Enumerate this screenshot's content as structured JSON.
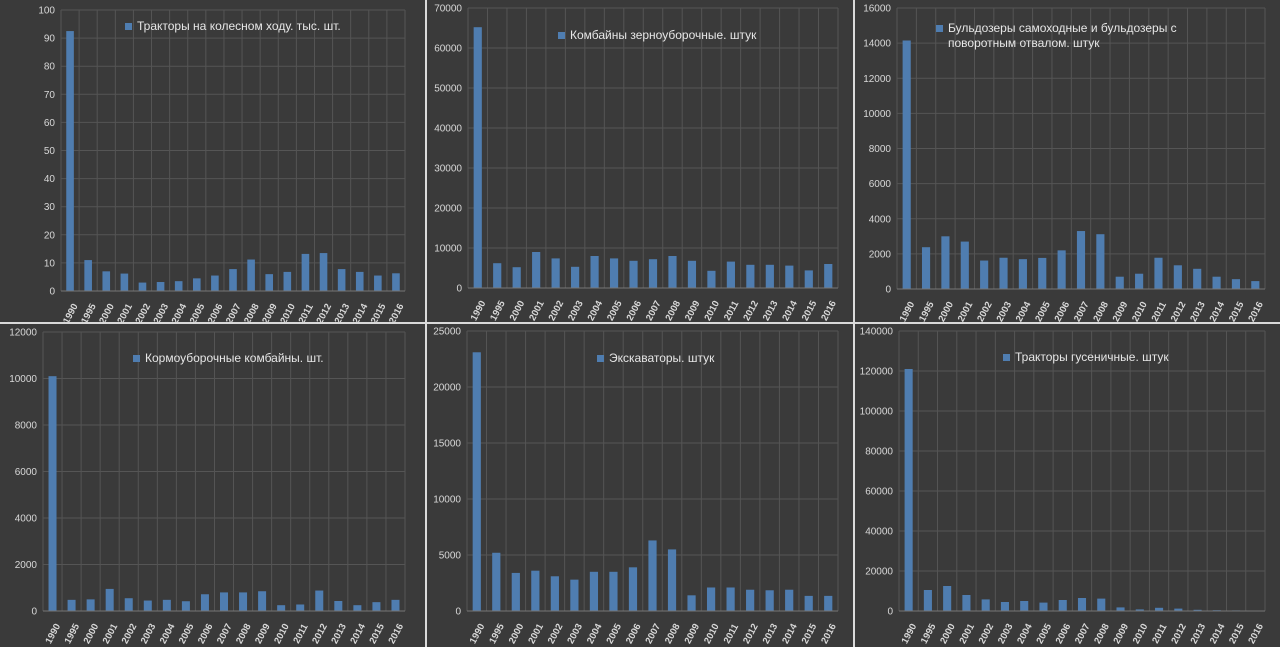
{
  "colors": {
    "background": "#3a3a3a",
    "bar": "#4f7db0",
    "grid": "#555555",
    "text": "#d8d8d8"
  },
  "categories": [
    "1990",
    "1995",
    "2000",
    "2001",
    "2002",
    "2003",
    "2004",
    "2005",
    "2006",
    "2007",
    "2008",
    "2009",
    "2010",
    "2011",
    "2012",
    "2013",
    "2014",
    "2015",
    "2016"
  ],
  "chart_data": [
    {
      "type": "bar",
      "series": [
        {
          "name": "Тракторы на колесном ходу. тыс. шт.",
          "values": [
            92.5,
            11,
            7,
            6.2,
            3,
            3.2,
            3.5,
            4.5,
            5.5,
            7.8,
            11.2,
            6,
            6.8,
            13.2,
            13.5,
            7.8,
            6.8,
            5.5,
            6.3
          ]
        }
      ],
      "ylim": [
        0,
        100
      ],
      "yticks": [
        "0",
        "10",
        "20",
        "30",
        "40",
        "50",
        "60",
        "70",
        "80",
        "90",
        "100"
      ],
      "grid": true,
      "legend": "top-center"
    },
    {
      "type": "bar",
      "series": [
        {
          "name": "Комбайны зерноуборочные. штук",
          "values": [
            65200,
            6200,
            5200,
            9000,
            7400,
            5300,
            8000,
            7400,
            6800,
            7200,
            8000,
            6800,
            4300,
            6600,
            5800,
            5800,
            5600,
            4400,
            6000
          ]
        }
      ],
      "ylim": [
        0,
        70000
      ],
      "yticks": [
        "0",
        "10000",
        "20000",
        "30000",
        "40000",
        "50000",
        "60000",
        "70000"
      ],
      "grid": true,
      "legend": "top-center"
    },
    {
      "type": "bar",
      "series": [
        {
          "name": "Бульдозеры самоходные и бульдозеры с поворотным отвалом. штук",
          "values": [
            14150,
            2380,
            3000,
            2700,
            1620,
            1780,
            1700,
            1770,
            2200,
            3300,
            3120,
            700,
            870,
            1780,
            1350,
            1150,
            700,
            560,
            450
          ]
        }
      ],
      "ylim": [
        0,
        16000
      ],
      "yticks": [
        "0",
        "2000",
        "4000",
        "6000",
        "8000",
        "10000",
        "12000",
        "14000",
        "16000"
      ],
      "grid": true,
      "legend": "top-right"
    },
    {
      "type": "bar",
      "series": [
        {
          "name": "Кормоуборочные комбайны. шт.",
          "values": [
            10100,
            480,
            500,
            950,
            550,
            450,
            480,
            420,
            720,
            800,
            800,
            850,
            250,
            280,
            880,
            430,
            250,
            380,
            480
          ]
        }
      ],
      "ylim": [
        0,
        12000
      ],
      "yticks": [
        "0",
        "2000",
        "4000",
        "6000",
        "8000",
        "10000",
        "12000"
      ],
      "grid": true,
      "legend": "top-center"
    },
    {
      "type": "bar",
      "series": [
        {
          "name": "Экскаваторы. штук",
          "values": [
            23100,
            5200,
            3400,
            3600,
            3100,
            2800,
            3500,
            3500,
            3900,
            6300,
            5500,
            1400,
            2100,
            2100,
            1900,
            1850,
            1900,
            1350,
            1350
          ]
        }
      ],
      "ylim": [
        0,
        25000
      ],
      "yticks": [
        "0",
        "5000",
        "10000",
        "15000",
        "20000",
        "25000"
      ],
      "grid": true,
      "legend": "top-center"
    },
    {
      "type": "bar",
      "series": [
        {
          "name": "Тракторы гусеничные. штук",
          "values": [
            121000,
            10500,
            12500,
            8000,
            5800,
            4500,
            5000,
            4200,
            5500,
            6500,
            6200,
            1800,
            800,
            1600,
            1200,
            600,
            400,
            300,
            200
          ]
        }
      ],
      "ylim": [
        0,
        140000
      ],
      "yticks": [
        "0",
        "20000",
        "40000",
        "60000",
        "80000",
        "100000",
        "120000",
        "140000"
      ],
      "grid": true,
      "legend": "top-center"
    }
  ]
}
